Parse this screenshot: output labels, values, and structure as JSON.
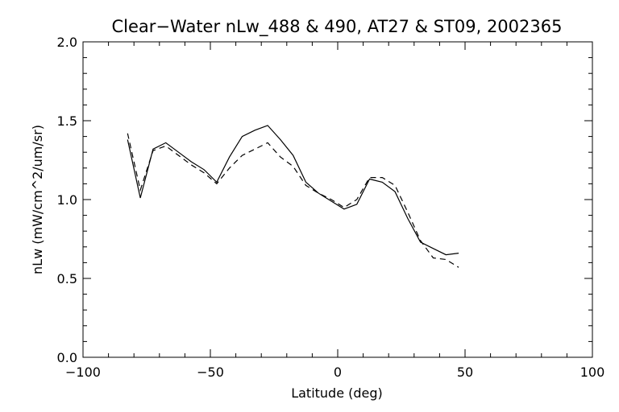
{
  "chart_data": {
    "type": "line",
    "title": "Clear−Water nLw_488 & 490, AT27 & ST09, 2002365",
    "xlabel": "Latitude (deg)",
    "ylabel": "nLw (mW/cm^2/um/sr)",
    "xlim": [
      -100,
      100
    ],
    "ylim": [
      0.0,
      2.0
    ],
    "x_ticks": [
      -100,
      -50,
      0,
      50,
      100
    ],
    "x_tick_labels": [
      "−100",
      "−50",
      "0",
      "50",
      "100"
    ],
    "x_minor_step": 10,
    "y_ticks": [
      0.0,
      0.5,
      1.0,
      1.5,
      2.0
    ],
    "y_tick_labels": [
      "0.0",
      "0.5",
      "1.0",
      "1.5",
      "2.0"
    ],
    "y_minor_step": 0.1,
    "grid": false,
    "legend": "none",
    "series": [
      {
        "style": "solid",
        "color": "#000000",
        "x": [
          -82.5,
          -77.5,
          -72.5,
          -67.5,
          -62.5,
          -57.5,
          -52.5,
          -47.5,
          -42.5,
          -37.5,
          -32.5,
          -27.5,
          -22.5,
          -17.5,
          -12.5,
          -7.5,
          -2.5,
          2.5,
          7.5,
          12.5,
          17.5,
          22.5,
          27.5,
          32.5,
          37.5,
          42.5,
          47.5
        ],
        "y": [
          1.38,
          1.01,
          1.32,
          1.36,
          1.3,
          1.24,
          1.19,
          1.11,
          1.27,
          1.4,
          1.44,
          1.47,
          1.38,
          1.28,
          1.11,
          1.04,
          0.99,
          0.94,
          0.97,
          1.13,
          1.11,
          1.05,
          0.88,
          0.73,
          0.69,
          0.65,
          0.66
        ]
      },
      {
        "style": "dashed",
        "color": "#000000",
        "x": [
          -82.5,
          -77.5,
          -72.5,
          -67.5,
          -62.5,
          -57.5,
          -52.5,
          -47.5,
          -42.5,
          -37.5,
          -32.5,
          -27.5,
          -22.5,
          -17.5,
          -12.5,
          -7.5,
          -2.5,
          2.5,
          7.5,
          12.5,
          17.5,
          22.5,
          27.5,
          32.5,
          37.5,
          42.5,
          47.5
        ],
        "y": [
          1.42,
          1.06,
          1.31,
          1.34,
          1.28,
          1.22,
          1.17,
          1.1,
          1.2,
          1.28,
          1.32,
          1.36,
          1.27,
          1.21,
          1.09,
          1.04,
          1.0,
          0.95,
          1.0,
          1.14,
          1.14,
          1.09,
          0.92,
          0.74,
          0.63,
          0.62,
          0.57
        ]
      }
    ]
  }
}
